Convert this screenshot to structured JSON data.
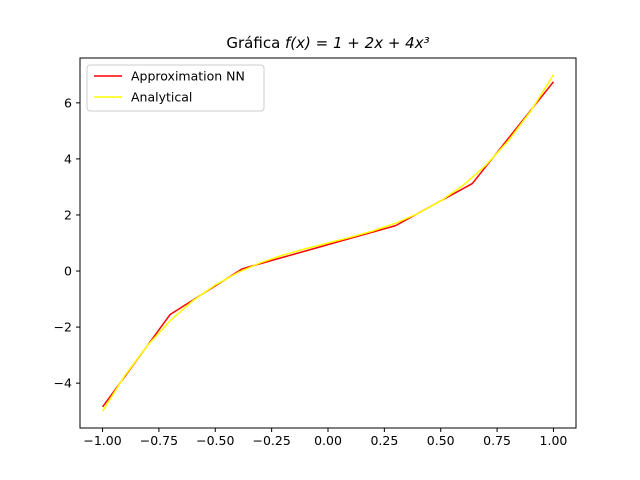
{
  "chart_data": {
    "type": "line",
    "title_prefix": "Gráfica ",
    "title_math": "f(x) = 1 + 2x + 4x³",
    "xlabel": "",
    "ylabel": "",
    "xlim": [
      -1.1,
      1.1
    ],
    "ylim": [
      -5.6,
      7.6
    ],
    "grid": false,
    "legend_position": "top-left",
    "x_ticks": [
      -1.0,
      -0.75,
      -0.5,
      -0.25,
      0.0,
      0.25,
      0.5,
      0.75,
      1.0
    ],
    "x_tick_labels": [
      "−1.00",
      "−0.75",
      "−0.50",
      "−0.25",
      "0.00",
      "0.25",
      "0.50",
      "0.75",
      "1.00"
    ],
    "y_ticks": [
      -4,
      -2,
      0,
      2,
      4,
      6
    ],
    "y_tick_labels": [
      "−4",
      "−2",
      "0",
      "2",
      "4",
      "6"
    ],
    "series": [
      {
        "name": "Approximation NN",
        "color": "#ff0000",
        "x": [
          -1.0,
          -0.7,
          -0.38,
          -0.35,
          0.3,
          0.64,
          1.0
        ],
        "y": [
          -4.85,
          -1.55,
          0.08,
          0.15,
          1.62,
          3.12,
          6.75
        ]
      },
      {
        "name": "Analytical",
        "color": "#ffff00",
        "x": [
          -1.0,
          -0.9,
          -0.8,
          -0.7,
          -0.6,
          -0.5,
          -0.4,
          -0.3,
          -0.2,
          -0.1,
          0.0,
          0.1,
          0.2,
          0.3,
          0.4,
          0.5,
          0.6,
          0.7,
          0.8,
          0.9,
          1.0
        ],
        "y": [
          -5.0,
          -3.716,
          -2.648,
          -1.772,
          -1.064,
          -0.5,
          -0.056,
          0.292,
          0.568,
          0.796,
          1.0,
          1.204,
          1.432,
          1.708,
          2.056,
          2.5,
          3.064,
          3.772,
          4.648,
          5.716,
          7.0
        ]
      }
    ]
  }
}
